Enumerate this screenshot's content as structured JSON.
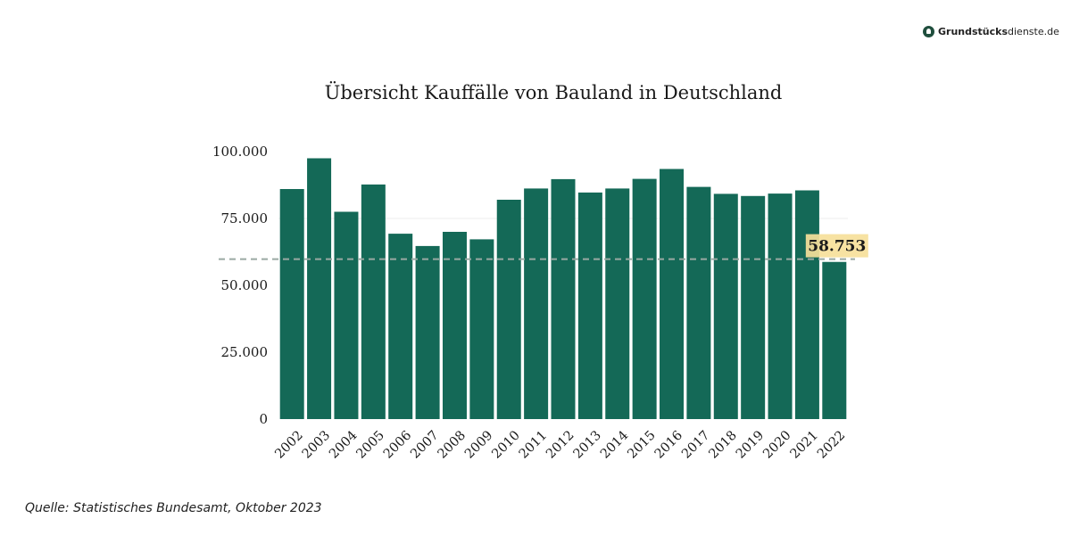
{
  "brand": {
    "bold": "Grundstücks",
    "light": "dienste.de"
  },
  "source": "Quelle: Statistisches Bundesamt, Oktober 2023",
  "colors": {
    "bar": "#146957",
    "reference_line": "#9aa9a3",
    "annotation_bg": "#f6df9a",
    "gridline": "#eeeeee"
  },
  "chart_data": {
    "type": "bar",
    "title": "Übersicht Kauffälle von Bauland in Deutschland",
    "xlabel": "",
    "ylabel": "",
    "categories": [
      "2002",
      "2003",
      "2004",
      "2005",
      "2006",
      "2007",
      "2008",
      "2009",
      "2010",
      "2011",
      "2012",
      "2013",
      "2014",
      "2015",
      "2016",
      "2017",
      "2018",
      "2019",
      "2020",
      "2021",
      "2022"
    ],
    "values": [
      86000,
      97500,
      77500,
      87700,
      69300,
      64700,
      70000,
      67200,
      82000,
      86200,
      89700,
      84700,
      86200,
      89800,
      93500,
      86800,
      84200,
      83400,
      84300,
      85500,
      58753
    ],
    "ylim": [
      0,
      100000
    ],
    "yticks": [
      0,
      25000,
      50000,
      75000,
      100000
    ],
    "ytick_labels": [
      "0",
      "25.000",
      "50.000",
      "75.000",
      "100.000"
    ],
    "grid": false,
    "reference_line": {
      "value": 59800,
      "style": "dashed"
    },
    "annotation": {
      "category": "2022",
      "text": "58.753"
    }
  }
}
